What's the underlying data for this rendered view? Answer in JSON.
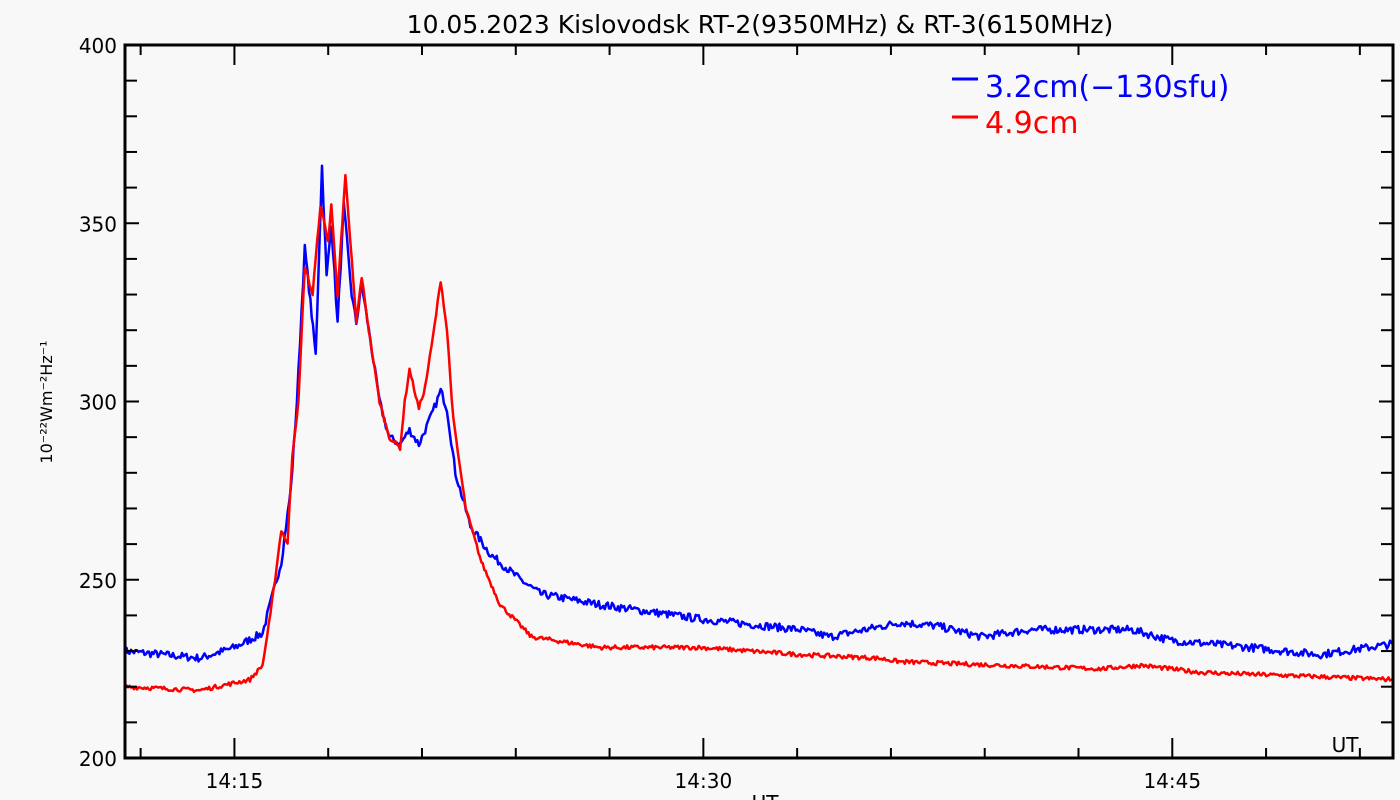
{
  "chart_data": {
    "type": "line",
    "title": "10.05.2023 Kislovodsk RT-2(9350MHz) & RT-3(6150MHz)",
    "xlabel": "UT",
    "ylabel": "10⁻²²Wm⁻²Hz⁻¹",
    "xlim_minutes_after_14h": [
      11.5,
      52.06
    ],
    "ylim": [
      200,
      400
    ],
    "x_ticks": [
      {
        "t": 15,
        "label": "14:15"
      },
      {
        "t": 30,
        "label": "14:30"
      },
      {
        "t": 45,
        "label": "14:45"
      }
    ],
    "x_minor_step_min": 3,
    "y_ticks": [
      200,
      250,
      300,
      350,
      400
    ],
    "y_minor_step": 10,
    "legend_position": "top-right",
    "series": [
      {
        "name": "3.2cm(−130sfu)",
        "color": "#0000ff",
        "points": [
          [
            11.5,
            230
          ],
          [
            13.9,
            228
          ],
          [
            15,
            231
          ],
          [
            15.9,
            235
          ],
          [
            16.2,
            245
          ],
          [
            16.5,
            255
          ],
          [
            16.8,
            275
          ],
          [
            17.0,
            300
          ],
          [
            17.25,
            343
          ],
          [
            17.43,
            328
          ],
          [
            17.6,
            313
          ],
          [
            17.8,
            366
          ],
          [
            17.95,
            335
          ],
          [
            18.1,
            350
          ],
          [
            18.3,
            322
          ],
          [
            18.5,
            355
          ],
          [
            18.75,
            330
          ],
          [
            18.9,
            322
          ],
          [
            19.07,
            333
          ],
          [
            19.3,
            320
          ],
          [
            19.64,
            300
          ],
          [
            19.95,
            290
          ],
          [
            20.3,
            288
          ],
          [
            20.6,
            292
          ],
          [
            20.9,
            288
          ],
          [
            21.3,
            296
          ],
          [
            21.6,
            303
          ],
          [
            21.8,
            298
          ],
          [
            22.07,
            280
          ],
          [
            22.55,
            265
          ],
          [
            23.2,
            257
          ],
          [
            24.15,
            250
          ],
          [
            24.8,
            246
          ],
          [
            26.7,
            243
          ],
          [
            29.9,
            239
          ],
          [
            33.1,
            236
          ],
          [
            34.05,
            234
          ],
          [
            36.3,
            238
          ],
          [
            37.5,
            237
          ],
          [
            38.9,
            234
          ],
          [
            40.46,
            236
          ],
          [
            41.7,
            236
          ],
          [
            43.7,
            236
          ],
          [
            44.95,
            233
          ],
          [
            47.5,
            231
          ],
          [
            49.7,
            229
          ],
          [
            52.06,
            232
          ]
        ]
      },
      {
        "name": "4.9cm",
        "color": "#ff0000",
        "points": [
          [
            11.5,
            220
          ],
          [
            13.9,
            219
          ],
          [
            15.5,
            222
          ],
          [
            15.9,
            226
          ],
          [
            16.15,
            240
          ],
          [
            16.5,
            264
          ],
          [
            16.7,
            260
          ],
          [
            16.85,
            285
          ],
          [
            17.05,
            300
          ],
          [
            17.25,
            338
          ],
          [
            17.5,
            330
          ],
          [
            17.75,
            355
          ],
          [
            18.0,
            345
          ],
          [
            18.1,
            355
          ],
          [
            18.3,
            330
          ],
          [
            18.55,
            363
          ],
          [
            18.75,
            340
          ],
          [
            18.9,
            322
          ],
          [
            19.07,
            335
          ],
          [
            19.3,
            320
          ],
          [
            19.64,
            300
          ],
          [
            19.95,
            290
          ],
          [
            20.3,
            287
          ],
          [
            20.45,
            300
          ],
          [
            20.6,
            309
          ],
          [
            20.9,
            298
          ],
          [
            21.1,
            304
          ],
          [
            21.35,
            318
          ],
          [
            21.6,
            334
          ],
          [
            21.8,
            320
          ],
          [
            22.0,
            295
          ],
          [
            22.4,
            270
          ],
          [
            22.9,
            255
          ],
          [
            23.5,
            243
          ],
          [
            24.5,
            234
          ],
          [
            26.7,
            231
          ],
          [
            29.9,
            231
          ],
          [
            33.1,
            229
          ],
          [
            35.6,
            228
          ],
          [
            36.3,
            227
          ],
          [
            39.5,
            226
          ],
          [
            42.7,
            225
          ],
          [
            44.0,
            226
          ],
          [
            45.9,
            224
          ],
          [
            49.1,
            223
          ],
          [
            52.06,
            222
          ]
        ]
      }
    ]
  }
}
